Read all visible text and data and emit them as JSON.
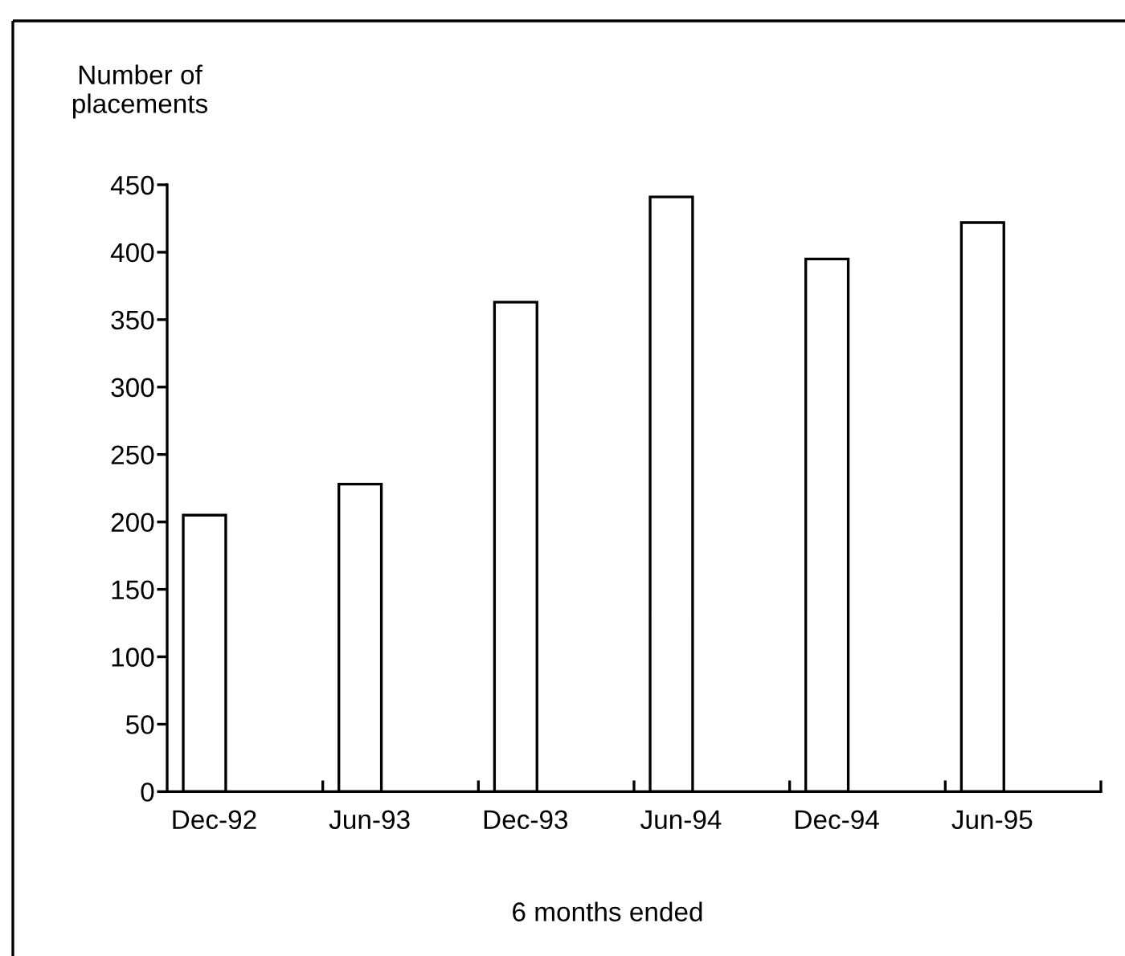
{
  "chart_data": {
    "type": "bar",
    "ylabel": "Number of\nplacements",
    "xlabel": "6 months ended",
    "categories": [
      "Dec-92",
      "Jun-93",
      "Dec-93",
      "Jun-94",
      "Dec-94",
      "Jun-95"
    ],
    "values": [
      205,
      228,
      363,
      441,
      395,
      422
    ],
    "color": "#ffffff",
    "ylim": [
      0,
      450
    ],
    "yticks": [
      0,
      50,
      100,
      150,
      200,
      250,
      300,
      350,
      400,
      450
    ]
  }
}
